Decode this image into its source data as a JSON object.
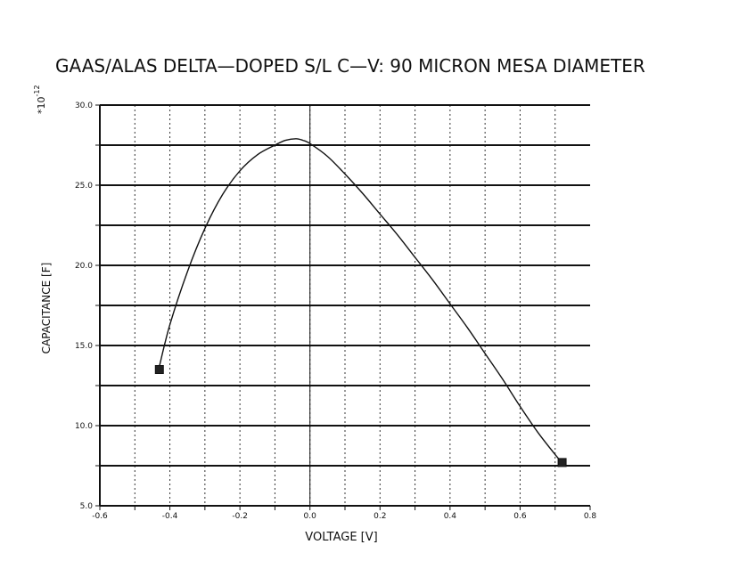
{
  "chart_data": {
    "type": "line",
    "title": "GAAS/ALAS DELTA—DOPED S/L C—V:  90 MICRON MESA DIAMETER",
    "xlabel": "VOLTAGE [V]",
    "ylabel": "CAPACITANCE [F]",
    "y_multiplier_label": "*10",
    "y_multiplier_exponent": "-12",
    "xlim": [
      -0.6,
      0.8
    ],
    "ylim": [
      5.0,
      30.0
    ],
    "x_ticks": [
      -0.6,
      -0.5,
      -0.4,
      -0.3,
      -0.2,
      -0.1,
      0.0,
      0.1,
      0.2,
      0.3,
      0.4,
      0.5,
      0.6,
      0.7,
      0.8
    ],
    "x_tick_labels": [
      "-0.6",
      "",
      "-0.4",
      "",
      "-0.2",
      "",
      "0.0",
      "",
      "0.2",
      "",
      "0.4",
      "",
      "0.6",
      "",
      "0.8"
    ],
    "y_ticks": [
      5.0,
      7.5,
      10.0,
      12.5,
      15.0,
      17.5,
      20.0,
      22.5,
      25.0,
      27.5,
      30.0
    ],
    "y_tick_labels": [
      "5.0",
      "",
      "10.0",
      "",
      "15.0",
      "",
      "20.0",
      "",
      "25.0",
      "",
      "30.0"
    ],
    "grid": true,
    "series": [
      {
        "x": [
          -0.43,
          -0.4,
          -0.35,
          -0.3,
          -0.25,
          -0.2,
          -0.15,
          -0.1,
          -0.07,
          -0.04,
          -0.02,
          0.0,
          0.05,
          0.1,
          0.15,
          0.2,
          0.25,
          0.3,
          0.35,
          0.4,
          0.45,
          0.5,
          0.55,
          0.6,
          0.65,
          0.7,
          0.72
        ],
        "y": [
          13.7,
          16.3,
          19.6,
          22.3,
          24.4,
          25.9,
          26.9,
          27.5,
          27.8,
          27.9,
          27.8,
          27.6,
          26.8,
          25.7,
          24.5,
          23.2,
          21.9,
          20.5,
          19.1,
          17.6,
          16.1,
          14.5,
          12.9,
          11.2,
          9.6,
          8.2,
          7.7
        ]
      }
    ],
    "markers": [
      {
        "x": -0.43,
        "y": 13.5
      },
      {
        "x": 0.72,
        "y": 7.7
      }
    ]
  }
}
